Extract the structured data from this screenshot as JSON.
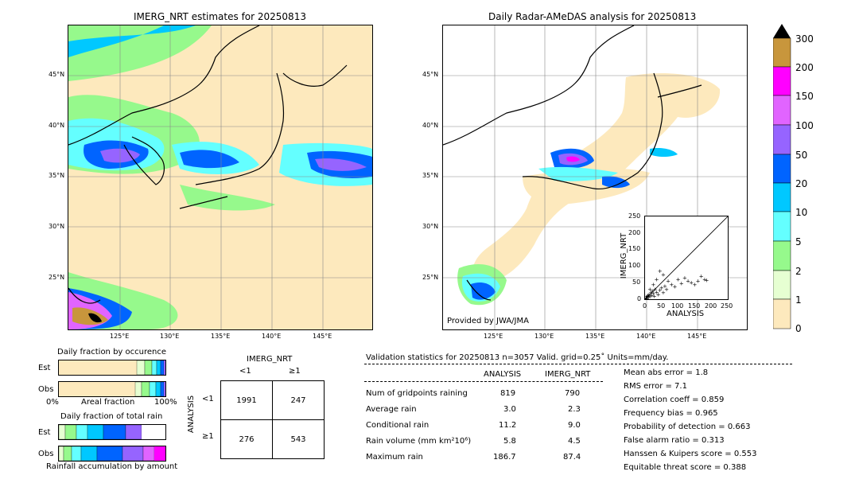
{
  "left_map": {
    "title": "IMERG_NRT estimates for 20250813",
    "lat_ticks": [
      "45°N",
      "40°N",
      "35°N",
      "30°N",
      "25°N"
    ],
    "lon_ticks": [
      "125°E",
      "130°E",
      "135°E",
      "140°E",
      "145°E"
    ]
  },
  "right_map": {
    "title": "Daily Radar-AMeDAS analysis for 20250813",
    "lat_ticks": [
      "45°N",
      "40°N",
      "35°N",
      "30°N",
      "25°N"
    ],
    "lon_ticks": [
      "125°E",
      "130°E",
      "135°E",
      "140°E",
      "145°E"
    ],
    "credit": "Provided by JWA/JMA"
  },
  "scatter_inset": {
    "xlabel": "ANALYSIS",
    "ylabel": "IMERG_NRT",
    "ticks": [
      "0",
      "50",
      "100",
      "150",
      "200",
      "250"
    ]
  },
  "colorbar": {
    "labels": [
      "0",
      "1",
      "2",
      "5",
      "10",
      "20",
      "50",
      "100",
      "150",
      "200",
      "300"
    ],
    "colors": [
      "#fde9bd",
      "#e6ffd2",
      "#96f98c",
      "#64ffff",
      "#00c8ff",
      "#0064ff",
      "#9664ff",
      "#e164ff",
      "#ff00ff",
      "#c8963c",
      "#000000"
    ]
  },
  "occurrence": {
    "title": "Daily fraction by occurence",
    "est_label": "Est",
    "obs_label": "Obs",
    "axis_left": "0%",
    "axis_mid": "Areal fraction",
    "axis_right": "100%"
  },
  "total_rain": {
    "title": "Daily fraction of total rain",
    "est_label": "Est",
    "obs_label": "Obs",
    "footer": "Rainfall accumulation by amount"
  },
  "contingency": {
    "title": "IMERG_NRT",
    "col_lt": "<1",
    "col_ge": "≥1",
    "row_axis": "ANALYSIS",
    "row_lt": "<1",
    "row_ge": "≥1",
    "cells": [
      "1991",
      "247",
      "276",
      "543"
    ]
  },
  "validation": {
    "header": "Validation statistics for 20250813  n=3057 Valid. grid=0.25˚ Units=mm/day.",
    "col_analysis": "ANALYSIS",
    "col_imerg": "IMERG_NRT",
    "rows": [
      {
        "label": "Num of gridpoints raining",
        "analysis": "819",
        "imerg": "790"
      },
      {
        "label": "Average rain",
        "analysis": "3.0",
        "imerg": "2.3"
      },
      {
        "label": "Conditional rain",
        "analysis": "11.2",
        "imerg": "9.0"
      },
      {
        "label": "Rain volume (mm km²10⁶)",
        "analysis": "5.8",
        "imerg": "4.5"
      },
      {
        "label": "Maximum rain",
        "analysis": "186.7",
        "imerg": "87.4"
      }
    ],
    "scores": [
      "Mean abs error =    1.8",
      "RMS error =    7.1",
      "Correlation coeff =  0.859",
      "Frequency bias =  0.965",
      "Probability of detection =  0.663",
      "False alarm ratio =  0.313",
      "Hanssen & Kuipers score =  0.553",
      "Equitable threat score =  0.388"
    ]
  },
  "chart_data": {
    "type": "scatter",
    "xlabel": "ANALYSIS",
    "ylabel": "IMERG_NRT",
    "xlim": [
      0,
      250
    ],
    "ylim": [
      0,
      250
    ],
    "points": [
      [
        5,
        3
      ],
      [
        8,
        10
      ],
      [
        10,
        6
      ],
      [
        12,
        15
      ],
      [
        15,
        8
      ],
      [
        18,
        20
      ],
      [
        20,
        12
      ],
      [
        22,
        25
      ],
      [
        25,
        18
      ],
      [
        28,
        10
      ],
      [
        30,
        30
      ],
      [
        35,
        22
      ],
      [
        40,
        15
      ],
      [
        45,
        28
      ],
      [
        50,
        35
      ],
      [
        55,
        20
      ],
      [
        60,
        40
      ],
      [
        65,
        30
      ],
      [
        70,
        55
      ],
      [
        80,
        45
      ],
      [
        90,
        38
      ],
      [
        100,
        60
      ],
      [
        110,
        48
      ],
      [
        120,
        65
      ],
      [
        130,
        55
      ],
      [
        140,
        50
      ],
      [
        150,
        45
      ],
      [
        160,
        55
      ],
      [
        170,
        70
      ],
      [
        180,
        60
      ],
      [
        186,
        58
      ],
      [
        45,
        85
      ],
      [
        55,
        75
      ],
      [
        35,
        60
      ],
      [
        25,
        45
      ],
      [
        15,
        30
      ],
      [
        3,
        5
      ],
      [
        6,
        2
      ],
      [
        9,
        12
      ],
      [
        4,
        8
      ]
    ]
  }
}
